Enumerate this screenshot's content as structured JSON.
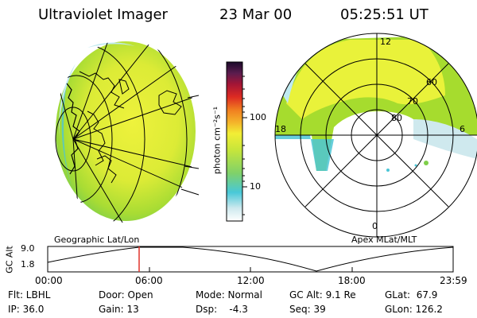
{
  "header": {
    "instrument": "Ultraviolet Imager",
    "date": "23 Mar 00",
    "time": "05:25:51 UT"
  },
  "colors": {
    "green": "#a6dc2e",
    "yellow": "#e9f23a",
    "cyan": "#4cc6d6",
    "light_cyan": "#bfeaf0",
    "red_marker": "#e0332b"
  },
  "colorbar": {
    "ticks": [
      "100",
      "10"
    ],
    "unit_label": "photon cm⁻²s⁻¹"
  },
  "left_panel": {
    "label": "Geographic Lat/Lon"
  },
  "right_panel": {
    "label": "Apex MLat/MLT",
    "mlt_labels": {
      "top": "12",
      "left": "18",
      "right": "6",
      "bottom": "0"
    },
    "lat_labels": [
      "60",
      "70",
      "80"
    ]
  },
  "orbit_plot": {
    "ylabel": "GC Alt",
    "yticks": [
      "9.0",
      "1.8"
    ],
    "xticks": [
      "00:00",
      "06:00",
      "12:00",
      "18:00",
      "23:59"
    ],
    "marker_time": "05:25:51"
  },
  "status": {
    "filter": "Flt: LBHL",
    "ip": "IP: 36.0",
    "door": "Door: Open",
    "gain": "Gain: 13",
    "mode": "Mode: Normal",
    "dsp": "Dsp:    -4.3",
    "gc_alt": "GC Alt: 9.1 Re",
    "seq": "Seq: 39",
    "glat": "GLat:  67.9",
    "glon": "GLon: 126.2"
  }
}
